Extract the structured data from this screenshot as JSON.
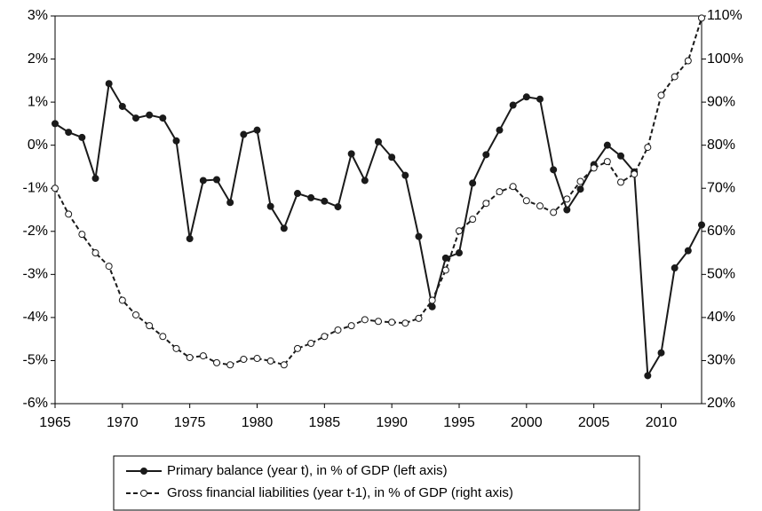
{
  "chart_data": {
    "type": "line",
    "x": [
      1965,
      1966,
      1967,
      1968,
      1969,
      1970,
      1971,
      1972,
      1973,
      1974,
      1975,
      1976,
      1977,
      1978,
      1979,
      1980,
      1981,
      1982,
      1983,
      1984,
      1985,
      1986,
      1987,
      1988,
      1989,
      1990,
      1991,
      1992,
      1993,
      1994,
      1995,
      1996,
      1997,
      1998,
      1999,
      2000,
      2001,
      2002,
      2003,
      2004,
      2005,
      2006,
      2007,
      2008,
      2009,
      2010,
      2011,
      2012,
      2013
    ],
    "xlim": [
      1965,
      2013
    ],
    "xticks": [
      1965,
      1970,
      1975,
      1980,
      1985,
      1990,
      1995,
      2000,
      2005,
      2010
    ],
    "ylim": [
      -6,
      3
    ],
    "yticks": [
      {
        "value": -6,
        "label": "-6%"
      },
      {
        "value": -5,
        "label": "-5%"
      },
      {
        "value": -4,
        "label": "-4%"
      },
      {
        "value": -3,
        "label": "-3%"
      },
      {
        "value": -2,
        "label": "-2%"
      },
      {
        "value": -1,
        "label": "-1%"
      },
      {
        "value": 0,
        "label": "0%"
      },
      {
        "value": 1,
        "label": "1%"
      },
      {
        "value": 2,
        "label": "2%"
      },
      {
        "value": 3,
        "label": "3%"
      }
    ],
    "y2lim": [
      20,
      110
    ],
    "y2ticks": [
      {
        "value": 20,
        "label": "20%"
      },
      {
        "value": 30,
        "label": "30%"
      },
      {
        "value": 40,
        "label": "40%"
      },
      {
        "value": 50,
        "label": "50%"
      },
      {
        "value": 60,
        "label": "60%"
      },
      {
        "value": 70,
        "label": "70%"
      },
      {
        "value": 80,
        "label": "80%"
      },
      {
        "value": 90,
        "label": "90%"
      },
      {
        "value": 100,
        "label": "100%"
      },
      {
        "value": 110,
        "label": "110%"
      }
    ],
    "grid": false,
    "legend_position": "bottom",
    "series": [
      {
        "name": "Primary balance (year t), in % of GDP (left axis)",
        "color": "#1a1a1a",
        "line_style": "solid",
        "marker_fill": "#1a1a1a",
        "axis": "y",
        "values": [
          0.5,
          0.3,
          0.18,
          -0.77,
          1.43,
          0.9,
          0.63,
          0.7,
          0.63,
          0.1,
          -2.17,
          -0.82,
          -0.8,
          -1.33,
          0.25,
          0.35,
          -1.42,
          -1.93,
          -1.12,
          -1.22,
          -1.3,
          -1.43,
          -0.2,
          -0.82,
          0.08,
          -0.28,
          -0.7,
          -2.12,
          -3.75,
          -2.62,
          -2.5,
          -0.88,
          -0.22,
          0.35,
          0.93,
          1.12,
          1.07,
          -0.57,
          -1.5,
          -1.02,
          -0.45,
          0.0,
          -0.25,
          -0.62,
          -5.35,
          -4.82,
          -2.85,
          -2.45,
          -1.85
        ]
      },
      {
        "name": "Gross financial liabilities (year t-1), in % of GDP (right axis)",
        "color": "#1a1a1a",
        "line_style": "dashed",
        "marker_fill": "#ffffff",
        "axis": "y2",
        "values": [
          70,
          64,
          59.3,
          55,
          51.9,
          44,
          40.6,
          38.1,
          35.6,
          32.8,
          30.7,
          31.1,
          29.5,
          29,
          30.3,
          30.5,
          29.9,
          29,
          32.8,
          34,
          35.6,
          37.1,
          38.1,
          39.5,
          39.1,
          38.9,
          38.7,
          39.8,
          44,
          51,
          60.1,
          62.8,
          66.5,
          69.2,
          70.4,
          67.1,
          65.9,
          64.4,
          67.5,
          71.6,
          74.7,
          76.2,
          71.4,
          73.3,
          79.5,
          91.6,
          95.9,
          99.6,
          109.5
        ]
      }
    ]
  }
}
